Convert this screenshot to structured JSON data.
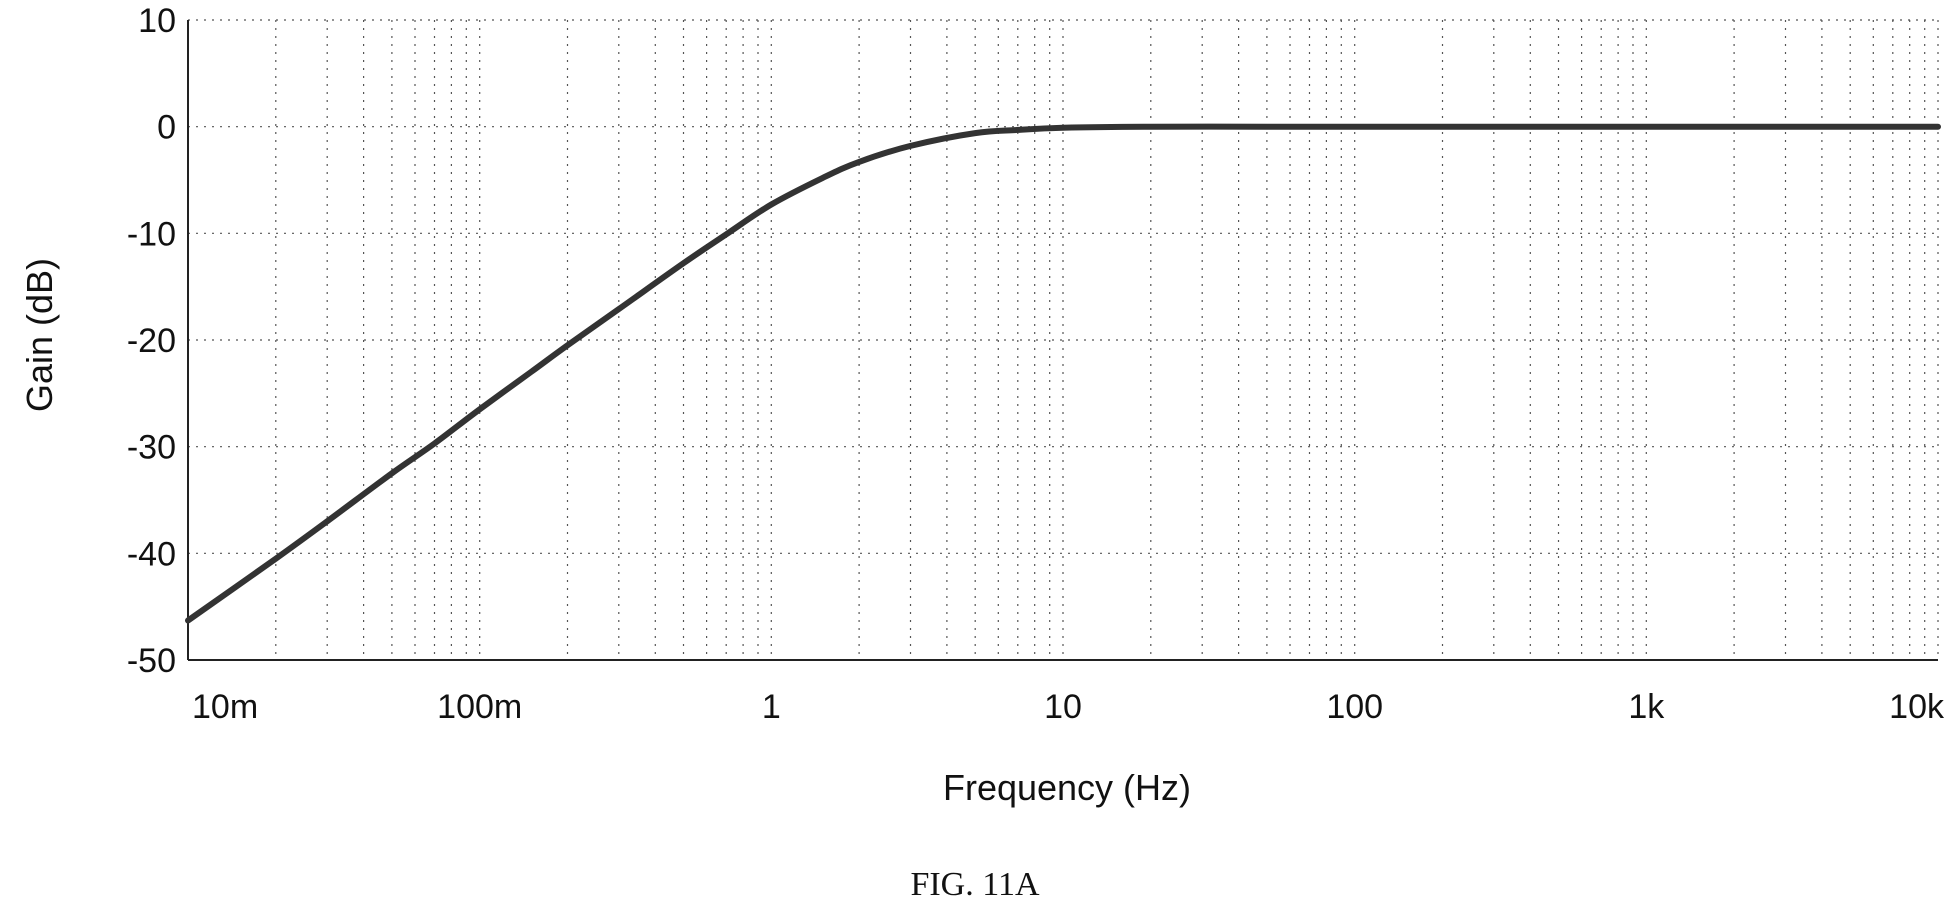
{
  "figure": {
    "caption": "FIG. 11A"
  },
  "chart_data": {
    "type": "line",
    "title": "",
    "xlabel": "Frequency (Hz)",
    "ylabel": "Gain (dB)",
    "x_scale": "log",
    "xlim": [
      0.01,
      10000
    ],
    "ylim": [
      -50,
      10
    ],
    "grid": true,
    "x_ticks": [
      {
        "value": 0.01,
        "label": "10m"
      },
      {
        "value": 0.1,
        "label": "100m"
      },
      {
        "value": 1,
        "label": "1"
      },
      {
        "value": 10,
        "label": "10"
      },
      {
        "value": 100,
        "label": "100"
      },
      {
        "value": 1000,
        "label": "1k"
      },
      {
        "value": 10000,
        "label": "10k"
      }
    ],
    "y_ticks": [
      {
        "value": 10,
        "label": "10"
      },
      {
        "value": 0,
        "label": "0"
      },
      {
        "value": -10,
        "label": "-10"
      },
      {
        "value": -20,
        "label": "-20"
      },
      {
        "value": -30,
        "label": "-30"
      },
      {
        "value": -40,
        "label": "-40"
      },
      {
        "value": -50,
        "label": "-50"
      }
    ],
    "series": [
      {
        "color": "#333333",
        "x": [
          0.01,
          0.02,
          0.03,
          0.05,
          0.07,
          0.1,
          0.15,
          0.2,
          0.3,
          0.5,
          0.7,
          1,
          1.5,
          2,
          3,
          5,
          7,
          10,
          20,
          50,
          100,
          1000,
          10000
        ],
        "y": [
          -46.3,
          -40.5,
          -37.0,
          -32.5,
          -29.7,
          -26.5,
          -23.0,
          -20.5,
          -17.1,
          -12.8,
          -10.1,
          -7.3,
          -4.8,
          -3.3,
          -1.8,
          -0.6,
          -0.3,
          -0.1,
          0,
          0,
          0,
          0,
          0
        ]
      }
    ]
  }
}
